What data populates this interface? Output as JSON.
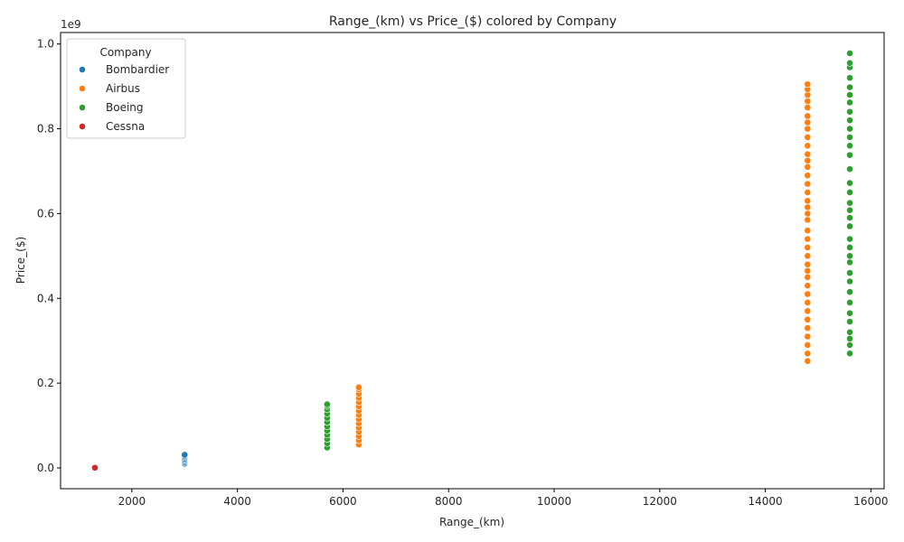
{
  "chart_data": {
    "type": "scatter",
    "title": "Range_(km) vs Price_($) colored by Company",
    "xlabel": "Range_(km)",
    "ylabel": "Price_($)",
    "y_offset_label": "1e9",
    "xlim": [
      650,
      16250
    ],
    "ylim": [
      -0.049,
      1.027
    ],
    "x_ticks": [
      2000,
      4000,
      6000,
      8000,
      10000,
      12000,
      14000,
      16000
    ],
    "x_tick_labels": [
      "2000",
      "4000",
      "6000",
      "8000",
      "10000",
      "12000",
      "14000",
      "16000"
    ],
    "y_ticks": [
      0.0,
      0.2,
      0.4,
      0.6,
      0.8,
      1.0
    ],
    "y_tick_labels": [
      "0.0",
      "0.2",
      "0.4",
      "0.6",
      "0.8",
      "1.0"
    ],
    "y_unit_scale": "1e9",
    "grid": false,
    "legend": {
      "title": "Company",
      "placement": "top-left",
      "entries": [
        "Bombardier",
        "Airbus",
        "Boeing",
        "Cessna"
      ]
    },
    "series": [
      {
        "name": "Bombardier",
        "color": "#1f77b4",
        "points": [
          [
            3000,
            0.01
          ],
          [
            3000,
            0.013
          ],
          [
            3000,
            0.016
          ],
          [
            3000,
            0.019
          ],
          [
            3000,
            0.022
          ],
          [
            3000,
            0.025
          ],
          [
            3000,
            0.028
          ],
          [
            3000,
            0.031
          ]
        ]
      },
      {
        "name": "Airbus",
        "color": "#ff7f0e",
        "points": [
          [
            6300,
            0.055
          ],
          [
            6300,
            0.065
          ],
          [
            6300,
            0.075
          ],
          [
            6300,
            0.085
          ],
          [
            6300,
            0.095
          ],
          [
            6300,
            0.105
          ],
          [
            6300,
            0.115
          ],
          [
            6300,
            0.125
          ],
          [
            6300,
            0.135
          ],
          [
            6300,
            0.145
          ],
          [
            6300,
            0.155
          ],
          [
            6300,
            0.165
          ],
          [
            6300,
            0.175
          ],
          [
            6300,
            0.185
          ],
          [
            6300,
            0.19
          ],
          [
            14800,
            0.252
          ],
          [
            14800,
            0.27
          ],
          [
            14800,
            0.29
          ],
          [
            14800,
            0.31
          ],
          [
            14800,
            0.33
          ],
          [
            14800,
            0.35
          ],
          [
            14800,
            0.37
          ],
          [
            14800,
            0.39
          ],
          [
            14800,
            0.41
          ],
          [
            14800,
            0.43
          ],
          [
            14800,
            0.45
          ],
          [
            14800,
            0.465
          ],
          [
            14800,
            0.48
          ],
          [
            14800,
            0.5
          ],
          [
            14800,
            0.52
          ],
          [
            14800,
            0.54
          ],
          [
            14800,
            0.56
          ],
          [
            14800,
            0.585
          ],
          [
            14800,
            0.6
          ],
          [
            14800,
            0.615
          ],
          [
            14800,
            0.63
          ],
          [
            14800,
            0.65
          ],
          [
            14800,
            0.67
          ],
          [
            14800,
            0.69
          ],
          [
            14800,
            0.71
          ],
          [
            14800,
            0.725
          ],
          [
            14800,
            0.74
          ],
          [
            14800,
            0.76
          ],
          [
            14800,
            0.78
          ],
          [
            14800,
            0.8
          ],
          [
            14800,
            0.815
          ],
          [
            14800,
            0.83
          ],
          [
            14800,
            0.85
          ],
          [
            14800,
            0.865
          ],
          [
            14800,
            0.88
          ],
          [
            14800,
            0.893
          ],
          [
            14800,
            0.905
          ]
        ]
      },
      {
        "name": "Boeing",
        "color": "#2ca02c",
        "points": [
          [
            5700,
            0.048
          ],
          [
            5700,
            0.058
          ],
          [
            5700,
            0.068
          ],
          [
            5700,
            0.078
          ],
          [
            5700,
            0.088
          ],
          [
            5700,
            0.098
          ],
          [
            5700,
            0.108
          ],
          [
            5700,
            0.118
          ],
          [
            5700,
            0.128
          ],
          [
            5700,
            0.138
          ],
          [
            5700,
            0.146
          ],
          [
            5700,
            0.15
          ],
          [
            15600,
            0.27
          ],
          [
            15600,
            0.29
          ],
          [
            15600,
            0.305
          ],
          [
            15600,
            0.32
          ],
          [
            15600,
            0.345
          ],
          [
            15600,
            0.365
          ],
          [
            15600,
            0.39
          ],
          [
            15600,
            0.415
          ],
          [
            15600,
            0.44
          ],
          [
            15600,
            0.46
          ],
          [
            15600,
            0.485
          ],
          [
            15600,
            0.5
          ],
          [
            15600,
            0.52
          ],
          [
            15600,
            0.54
          ],
          [
            15600,
            0.57
          ],
          [
            15600,
            0.59
          ],
          [
            15600,
            0.608
          ],
          [
            15600,
            0.625
          ],
          [
            15600,
            0.65
          ],
          [
            15600,
            0.672
          ],
          [
            15600,
            0.705
          ],
          [
            15600,
            0.738
          ],
          [
            15600,
            0.76
          ],
          [
            15600,
            0.78
          ],
          [
            15600,
            0.8
          ],
          [
            15600,
            0.82
          ],
          [
            15600,
            0.84
          ],
          [
            15600,
            0.862
          ],
          [
            15600,
            0.88
          ],
          [
            15600,
            0.898
          ],
          [
            15600,
            0.92
          ],
          [
            15600,
            0.945
          ],
          [
            15600,
            0.955
          ],
          [
            15600,
            0.978
          ]
        ]
      },
      {
        "name": "Cessna",
        "color": "#d62728",
        "points": [
          [
            1300,
            0.0005
          ]
        ]
      }
    ]
  }
}
